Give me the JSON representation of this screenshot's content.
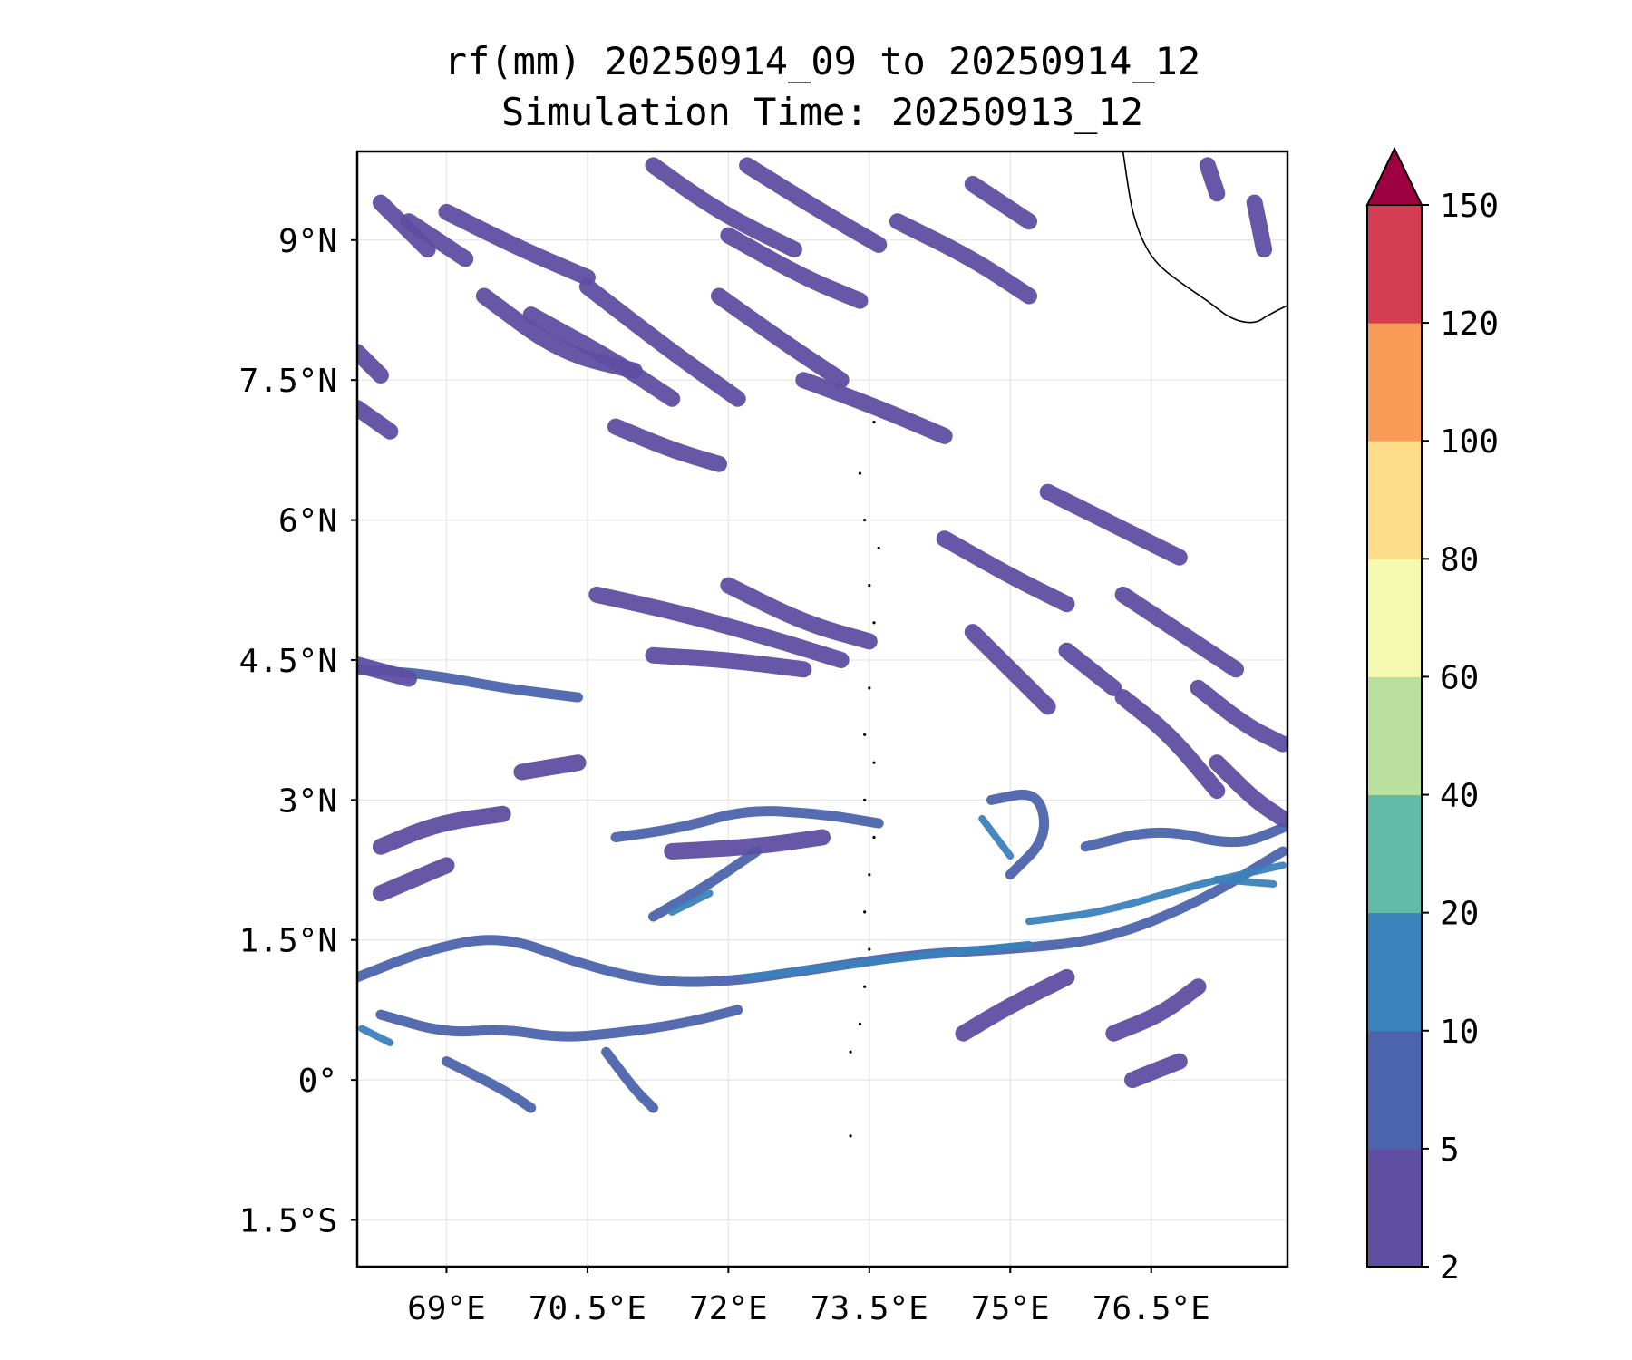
{
  "chart_data": {
    "type": "heatmap",
    "variable": "rf(mm)",
    "title_line1": "rf(mm) 20250914_09 to 20250914_12",
    "title_line2": "Simulation Time: 20250913_12",
    "xlim": [
      68.05,
      77.95
    ],
    "ylim": [
      -2.0,
      9.95
    ],
    "xticks": [
      {
        "value": 69.0,
        "label": "69°E"
      },
      {
        "value": 70.5,
        "label": "70.5°E"
      },
      {
        "value": 72.0,
        "label": "72°E"
      },
      {
        "value": 73.5,
        "label": "73.5°E"
      },
      {
        "value": 75.0,
        "label": "75°E"
      },
      {
        "value": 76.5,
        "label": "76.5°E"
      }
    ],
    "yticks": [
      {
        "value": 9.0,
        "label": "9°N"
      },
      {
        "value": 7.5,
        "label": "7.5°N"
      },
      {
        "value": 6.0,
        "label": "6°N"
      },
      {
        "value": 4.5,
        "label": "4.5°N"
      },
      {
        "value": 3.0,
        "label": "3°N"
      },
      {
        "value": 1.5,
        "label": "1.5°N"
      },
      {
        "value": 0.0,
        "label": "0°"
      },
      {
        "value": -1.5,
        "label": "1.5°S"
      }
    ],
    "grid": true,
    "colorbar": {
      "levels": [
        "2",
        "5",
        "10",
        "20",
        "40",
        "60",
        "80",
        "100",
        "120",
        "150"
      ],
      "colors": [
        "#5e4fa2",
        "#4c64ad",
        "#3a82bc",
        "#60bba7",
        "#b9e09c",
        "#f3f9ae",
        "#fddc8a",
        "#f99c58",
        "#d43d51"
      ],
      "extend_color": "#9e0142",
      "extend": "max"
    },
    "rain_bands": [
      {
        "points": [
          [
            68.05,
            1.1
          ],
          [
            68.8,
            1.4
          ],
          [
            69.6,
            1.55
          ],
          [
            70.4,
            1.25
          ],
          [
            71.2,
            1.05
          ],
          [
            72.0,
            1.05
          ],
          [
            73.0,
            1.2
          ],
          [
            74.0,
            1.35
          ],
          [
            75.0,
            1.4
          ],
          [
            76.0,
            1.5
          ],
          [
            77.0,
            1.9
          ],
          [
            77.9,
            2.45
          ]
        ],
        "level": 1
      },
      {
        "points": [
          [
            72.2,
            1.1
          ],
          [
            73.0,
            1.2
          ],
          [
            74.2,
            1.35
          ],
          [
            75.2,
            1.45
          ]
        ],
        "level": 2
      },
      {
        "points": [
          [
            75.2,
            1.7
          ],
          [
            76.0,
            1.8
          ],
          [
            77.0,
            2.1
          ],
          [
            77.9,
            2.3
          ]
        ],
        "level": 2
      },
      {
        "points": [
          [
            68.1,
            0.55
          ],
          [
            68.4,
            0.4
          ]
        ],
        "level": 2
      },
      {
        "points": [
          [
            68.05,
            4.4
          ],
          [
            68.8,
            4.35
          ],
          [
            69.6,
            4.2
          ],
          [
            70.4,
            4.1
          ]
        ],
        "level": 1
      },
      {
        "points": [
          [
            68.05,
            4.45
          ],
          [
            68.6,
            4.3
          ]
        ],
        "level": 0
      },
      {
        "points": [
          [
            68.3,
            0.7
          ],
          [
            69.0,
            0.5
          ],
          [
            69.6,
            0.55
          ],
          [
            70.2,
            0.45
          ],
          [
            70.8,
            0.5
          ],
          [
            71.5,
            0.6
          ],
          [
            72.1,
            0.75
          ]
        ],
        "level": 1
      },
      {
        "points": [
          [
            69.0,
            0.2
          ],
          [
            69.6,
            -0.1
          ],
          [
            69.9,
            -0.3
          ]
        ],
        "level": 1
      },
      {
        "points": [
          [
            70.7,
            0.3
          ],
          [
            71.0,
            -0.1
          ],
          [
            71.2,
            -0.3
          ]
        ],
        "level": 1
      },
      {
        "points": [
          [
            71.2,
            1.75
          ],
          [
            71.8,
            2.1
          ],
          [
            72.3,
            2.45
          ]
        ],
        "level": 1
      },
      {
        "points": [
          [
            71.4,
            1.8
          ],
          [
            71.8,
            2.0
          ]
        ],
        "level": 2
      },
      {
        "points": [
          [
            70.8,
            2.6
          ],
          [
            71.5,
            2.7
          ],
          [
            72.2,
            2.9
          ],
          [
            73.0,
            2.85
          ],
          [
            73.6,
            2.75
          ]
        ],
        "level": 1
      },
      {
        "points": [
          [
            74.8,
            3.0
          ],
          [
            75.3,
            3.1
          ],
          [
            75.4,
            2.6
          ],
          [
            75.0,
            2.2
          ]
        ],
        "level": 1
      },
      {
        "points": [
          [
            74.7,
            2.8
          ],
          [
            75.0,
            2.4
          ]
        ],
        "level": 2
      },
      {
        "points": [
          [
            75.8,
            2.5
          ],
          [
            76.6,
            2.7
          ],
          [
            77.4,
            2.5
          ],
          [
            77.9,
            2.7
          ]
        ],
        "level": 1
      },
      {
        "points": [
          [
            77.2,
            2.15
          ],
          [
            77.8,
            2.1
          ]
        ],
        "level": 2
      },
      {
        "points": [
          [
            68.05,
            7.2
          ],
          [
            68.4,
            6.95
          ]
        ],
        "level": 0
      },
      {
        "points": [
          [
            68.05,
            7.8
          ],
          [
            68.3,
            7.55
          ]
        ],
        "level": 0
      },
      {
        "points": [
          [
            68.3,
            9.4
          ],
          [
            68.8,
            8.9
          ]
        ],
        "level": 0
      },
      {
        "points": [
          [
            68.6,
            9.2
          ],
          [
            69.2,
            8.8
          ]
        ],
        "level": 0
      },
      {
        "points": [
          [
            69.0,
            9.3
          ],
          [
            69.8,
            8.9
          ],
          [
            70.5,
            8.6
          ]
        ],
        "level": 0
      },
      {
        "points": [
          [
            69.4,
            8.4
          ],
          [
            70.2,
            7.8
          ],
          [
            71.0,
            7.6
          ]
        ],
        "level": 0
      },
      {
        "points": [
          [
            69.9,
            8.2
          ],
          [
            70.8,
            7.7
          ],
          [
            71.4,
            7.3
          ]
        ],
        "level": 0
      },
      {
        "points": [
          [
            70.5,
            8.5
          ],
          [
            71.4,
            7.8
          ],
          [
            72.1,
            7.3
          ]
        ],
        "level": 0
      },
      {
        "points": [
          [
            71.2,
            9.8
          ],
          [
            71.9,
            9.3
          ],
          [
            72.7,
            8.9
          ]
        ],
        "level": 0
      },
      {
        "points": [
          [
            72.2,
            9.8
          ],
          [
            73.0,
            9.3
          ],
          [
            73.6,
            8.95
          ]
        ],
        "level": 0
      },
      {
        "points": [
          [
            72.0,
            9.05
          ],
          [
            72.8,
            8.6
          ],
          [
            73.4,
            8.35
          ]
        ],
        "level": 0
      },
      {
        "points": [
          [
            71.9,
            8.4
          ],
          [
            72.6,
            7.9
          ],
          [
            73.2,
            7.5
          ]
        ],
        "level": 0
      },
      {
        "points": [
          [
            72.8,
            7.5
          ],
          [
            73.6,
            7.2
          ],
          [
            74.3,
            6.9
          ]
        ],
        "level": 0
      },
      {
        "points": [
          [
            73.8,
            9.2
          ],
          [
            74.6,
            8.8
          ],
          [
            75.2,
            8.4
          ]
        ],
        "level": 0
      },
      {
        "points": [
          [
            74.6,
            9.6
          ],
          [
            75.2,
            9.2
          ]
        ],
        "level": 0
      },
      {
        "points": [
          [
            70.8,
            7.0
          ],
          [
            71.4,
            6.75
          ],
          [
            71.9,
            6.6
          ]
        ],
        "level": 0
      },
      {
        "points": [
          [
            70.6,
            5.2
          ],
          [
            71.5,
            5.0
          ],
          [
            72.4,
            4.75
          ],
          [
            73.2,
            4.5
          ]
        ],
        "level": 0
      },
      {
        "points": [
          [
            72.0,
            5.3
          ],
          [
            72.8,
            4.9
          ],
          [
            73.5,
            4.7
          ]
        ],
        "level": 0
      },
      {
        "points": [
          [
            71.2,
            4.55
          ],
          [
            72.0,
            4.5
          ],
          [
            72.8,
            4.4
          ]
        ],
        "level": 0
      },
      {
        "points": [
          [
            69.8,
            3.3
          ],
          [
            70.4,
            3.4
          ]
        ],
        "level": 0
      },
      {
        "points": [
          [
            71.4,
            2.45
          ],
          [
            72.3,
            2.5
          ],
          [
            73.0,
            2.6
          ]
        ],
        "level": 0
      },
      {
        "points": [
          [
            68.3,
            2.5
          ],
          [
            68.9,
            2.75
          ],
          [
            69.6,
            2.85
          ]
        ],
        "level": 0
      },
      {
        "points": [
          [
            68.3,
            2.0
          ],
          [
            69.0,
            2.3
          ]
        ],
        "level": 0
      },
      {
        "points": [
          [
            74.3,
            5.8
          ],
          [
            75.0,
            5.4
          ],
          [
            75.6,
            5.1
          ]
        ],
        "level": 0
      },
      {
        "points": [
          [
            75.4,
            6.3
          ],
          [
            76.0,
            6.0
          ],
          [
            76.8,
            5.6
          ]
        ],
        "level": 0
      },
      {
        "points": [
          [
            76.2,
            5.2
          ],
          [
            76.8,
            4.8
          ],
          [
            77.4,
            4.4
          ]
        ],
        "level": 0
      },
      {
        "points": [
          [
            77.0,
            4.2
          ],
          [
            77.5,
            3.8
          ],
          [
            77.9,
            3.6
          ]
        ],
        "level": 0
      },
      {
        "points": [
          [
            76.2,
            4.1
          ],
          [
            76.7,
            3.7
          ],
          [
            77.2,
            3.1
          ]
        ],
        "level": 0
      },
      {
        "points": [
          [
            75.6,
            4.6
          ],
          [
            76.1,
            4.2
          ]
        ],
        "level": 0
      },
      {
        "points": [
          [
            74.6,
            4.8
          ],
          [
            75.0,
            4.4
          ],
          [
            75.4,
            4.0
          ]
        ],
        "level": 0
      },
      {
        "points": [
          [
            77.6,
            9.4
          ],
          [
            77.7,
            8.9
          ]
        ],
        "level": 0
      },
      {
        "points": [
          [
            77.1,
            9.8
          ],
          [
            77.2,
            9.5
          ]
        ],
        "level": 0
      },
      {
        "points": [
          [
            77.2,
            3.4
          ],
          [
            77.6,
            3.0
          ],
          [
            77.9,
            2.8
          ]
        ],
        "level": 0
      },
      {
        "points": [
          [
            76.3,
            0.0
          ],
          [
            76.8,
            0.2
          ]
        ],
        "level": 0
      },
      {
        "points": [
          [
            74.5,
            0.5
          ],
          [
            75.0,
            0.8
          ],
          [
            75.6,
            1.1
          ]
        ],
        "level": 0
      },
      {
        "points": [
          [
            76.1,
            0.5
          ],
          [
            76.6,
            0.7
          ],
          [
            77.0,
            1.0
          ]
        ],
        "level": 0
      }
    ],
    "coastline": [
      [
        76.2,
        9.95
      ],
      [
        76.25,
        9.6
      ],
      [
        76.3,
        9.3
      ],
      [
        76.4,
        9.0
      ],
      [
        76.55,
        8.75
      ],
      [
        76.8,
        8.55
      ],
      [
        77.1,
        8.35
      ],
      [
        77.35,
        8.15
      ],
      [
        77.6,
        8.1
      ],
      [
        77.75,
        8.2
      ],
      [
        77.95,
        8.3
      ]
    ],
    "islands": [
      [
        73.55,
        7.05
      ],
      [
        73.4,
        6.5
      ],
      [
        73.45,
        6.0
      ],
      [
        73.6,
        5.7
      ],
      [
        73.5,
        5.3
      ],
      [
        73.55,
        4.9
      ],
      [
        73.5,
        4.2
      ],
      [
        73.45,
        3.7
      ],
      [
        73.55,
        3.4
      ],
      [
        73.45,
        3.0
      ],
      [
        73.55,
        2.6
      ],
      [
        73.5,
        2.2
      ],
      [
        73.45,
        1.8
      ],
      [
        73.5,
        1.4
      ],
      [
        73.45,
        1.0
      ],
      [
        73.4,
        0.6
      ],
      [
        73.3,
        0.3
      ],
      [
        73.3,
        -0.6
      ]
    ]
  }
}
